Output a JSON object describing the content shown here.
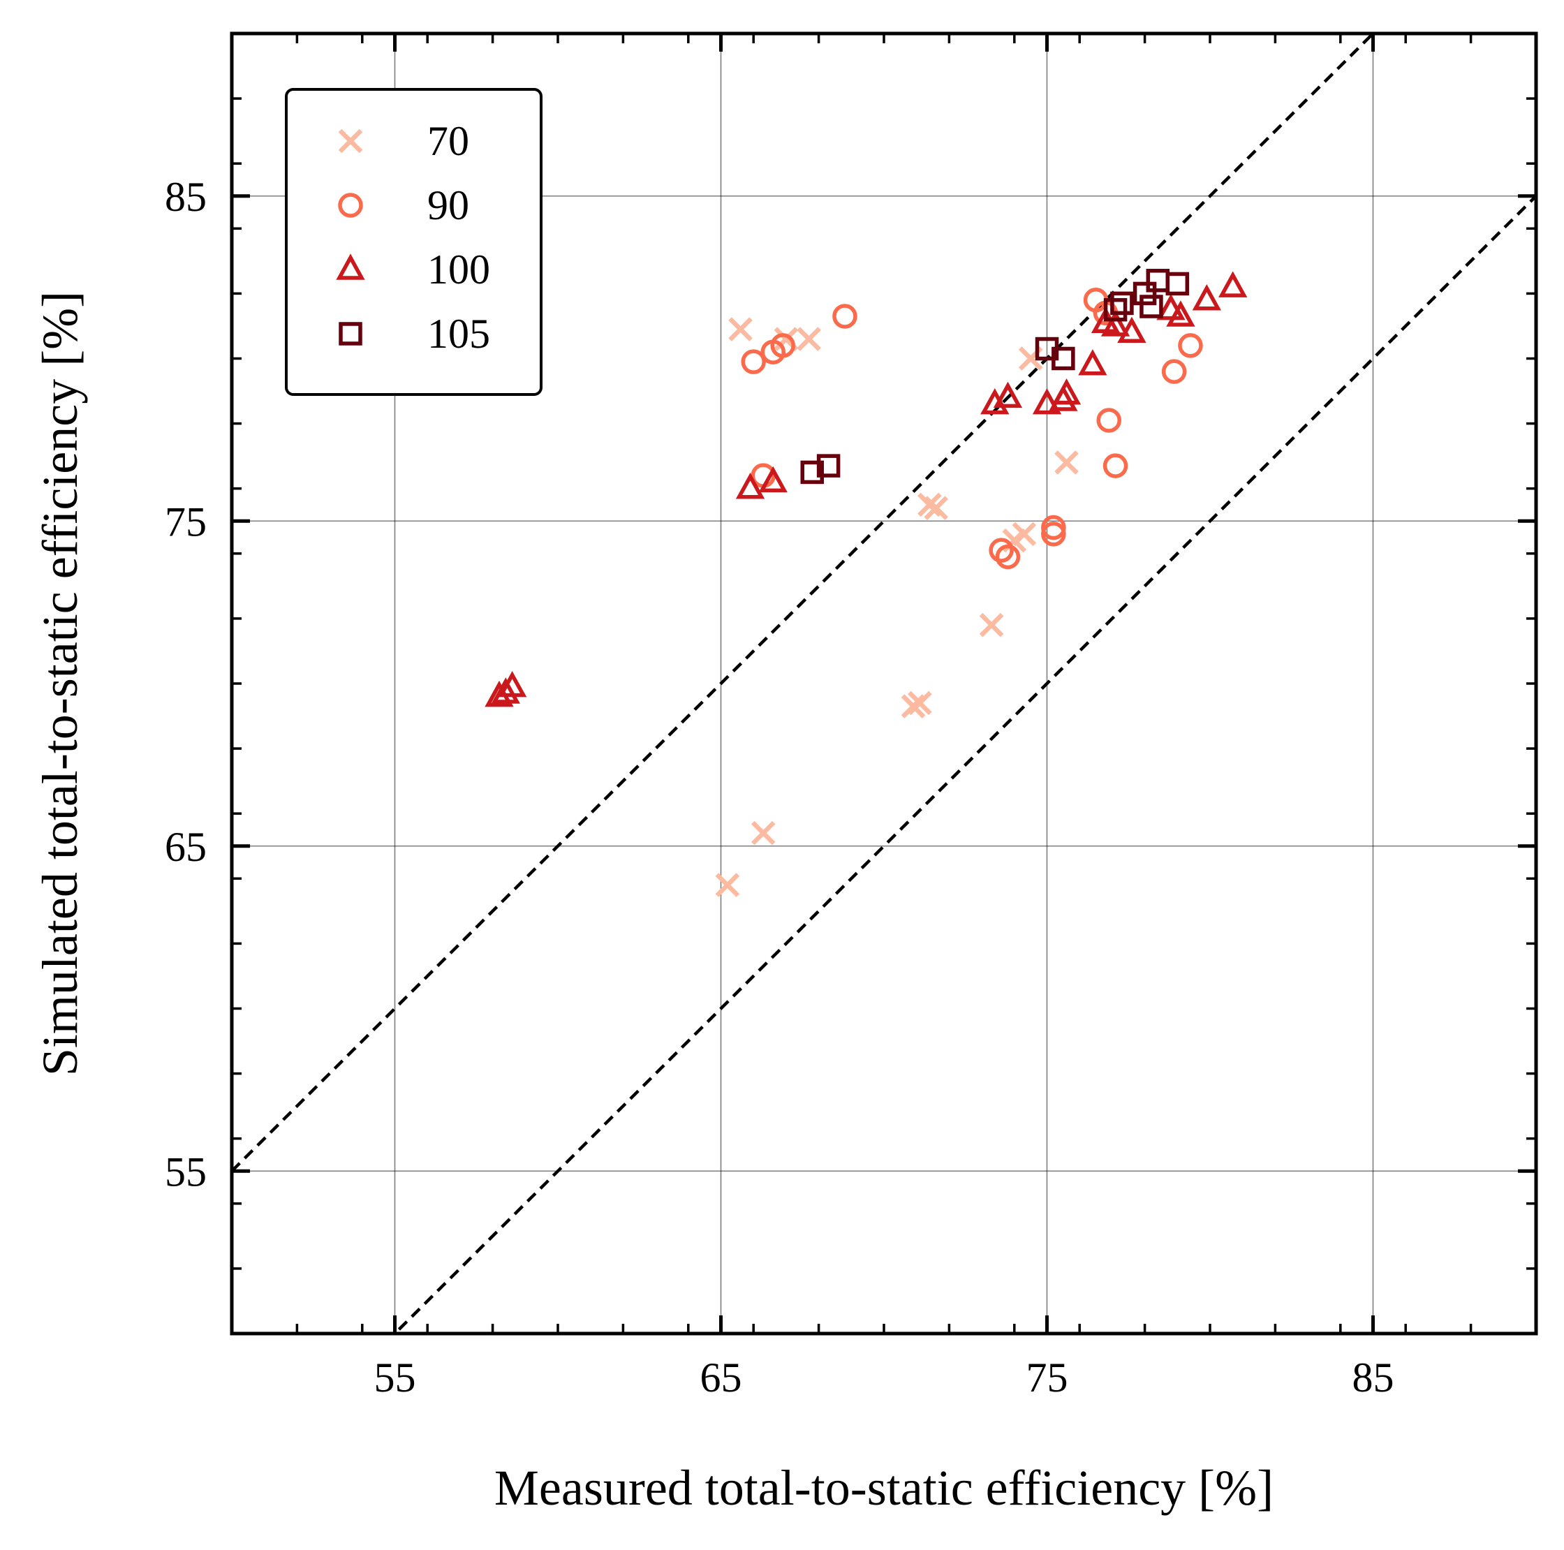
{
  "chart_data": {
    "type": "scatter",
    "title": "",
    "xlabel": "Measured total-to-static efficiency [%]",
    "ylabel": "Simulated total-to-static efficiency [%]",
    "xlim": [
      50,
      90
    ],
    "ylim": [
      50,
      90
    ],
    "xticks": [
      55,
      65,
      75,
      85
    ],
    "yticks": [
      55,
      65,
      75,
      85
    ],
    "xtick_labels": [
      "55",
      "65",
      "75",
      "85"
    ],
    "ytick_labels": [
      "55",
      "65",
      "75",
      "85"
    ],
    "grid": true,
    "legend_position": "top-left",
    "reference_lines": [
      {
        "style": "dashed",
        "color": "#000000",
        "x": [
          50,
          90
        ],
        "y": [
          55,
          95
        ]
      },
      {
        "style": "dashed",
        "color": "#000000",
        "x": [
          50,
          90
        ],
        "y": [
          45,
          85
        ]
      }
    ],
    "series": [
      {
        "name": "70",
        "marker": "x",
        "color": "#fcbba1",
        "points": [
          [
            65.6,
            80.9
          ],
          [
            67.0,
            80.6
          ],
          [
            67.7,
            80.6
          ],
          [
            74.5,
            80.0
          ],
          [
            75.6,
            76.8
          ],
          [
            71.4,
            75.5
          ],
          [
            71.6,
            75.4
          ],
          [
            74.3,
            74.6
          ],
          [
            74.0,
            74.4
          ],
          [
            73.3,
            71.8
          ],
          [
            70.9,
            69.3
          ],
          [
            71.1,
            69.4
          ],
          [
            66.3,
            65.4
          ],
          [
            65.2,
            63.8
          ]
        ]
      },
      {
        "name": "90",
        "marker": "o",
        "color": "#fb6a4a",
        "points": [
          [
            68.8,
            81.3
          ],
          [
            66.0,
            79.9
          ],
          [
            66.6,
            80.2
          ],
          [
            66.9,
            80.4
          ],
          [
            76.5,
            81.8
          ],
          [
            76.8,
            81.4
          ],
          [
            79.4,
            80.4
          ],
          [
            78.9,
            79.6
          ],
          [
            76.9,
            78.1
          ],
          [
            77.1,
            76.7
          ],
          [
            66.3,
            76.4
          ],
          [
            75.2,
            74.8
          ],
          [
            75.2,
            74.6
          ],
          [
            73.6,
            74.1
          ],
          [
            73.8,
            73.9
          ]
        ]
      },
      {
        "name": "100",
        "marker": "^",
        "color": "#cb181d",
        "points": [
          [
            58.2,
            69.6
          ],
          [
            58.4,
            69.7
          ],
          [
            58.6,
            69.9
          ],
          [
            65.9,
            76.0
          ],
          [
            66.6,
            76.2
          ],
          [
            73.4,
            78.6
          ],
          [
            73.8,
            78.8
          ],
          [
            75.0,
            78.6
          ],
          [
            75.5,
            78.7
          ],
          [
            75.6,
            78.9
          ],
          [
            76.4,
            79.8
          ],
          [
            76.8,
            81.1
          ],
          [
            77.1,
            81.0
          ],
          [
            77.6,
            80.8
          ],
          [
            78.8,
            81.5
          ],
          [
            79.1,
            81.3
          ],
          [
            79.9,
            81.8
          ],
          [
            80.7,
            82.2
          ]
        ]
      },
      {
        "name": "105",
        "marker": "s",
        "color": "#67000d",
        "points": [
          [
            67.8,
            76.5
          ],
          [
            68.3,
            76.7
          ],
          [
            75.0,
            80.3
          ],
          [
            75.5,
            80.0
          ],
          [
            77.1,
            81.5
          ],
          [
            77.3,
            81.7
          ],
          [
            78.0,
            82.0
          ],
          [
            78.2,
            81.6
          ],
          [
            78.4,
            82.4
          ],
          [
            79.0,
            82.3
          ]
        ]
      }
    ]
  }
}
